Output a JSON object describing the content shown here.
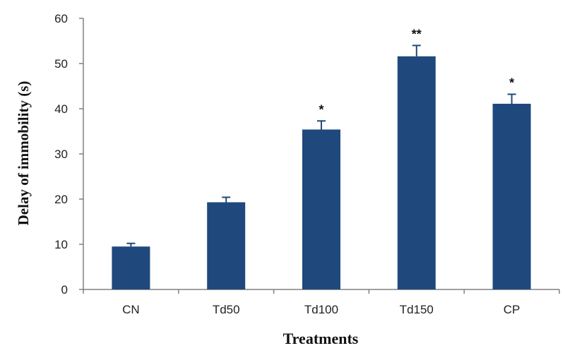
{
  "chart_data": {
    "type": "bar",
    "title": "",
    "xlabel": "Treatments",
    "ylabel": "Delay of immobility (s)",
    "categories": [
      "CN",
      "Td50",
      "Td100",
      "Td150",
      "CP"
    ],
    "values": [
      9.5,
      19.3,
      35.4,
      51.6,
      41.1
    ],
    "errors": [
      0.7,
      1.1,
      1.9,
      2.4,
      2.1
    ],
    "annotations": [
      "",
      "",
      "*",
      "**",
      "*"
    ],
    "ylim": [
      0,
      60
    ],
    "yticks": [
      "0",
      "10",
      "20",
      "30",
      "40",
      "50",
      "60"
    ],
    "grid": false,
    "legend": "none",
    "colors": {
      "bar": "#1f497d",
      "axis": "#808080",
      "text": "#222222"
    }
  }
}
